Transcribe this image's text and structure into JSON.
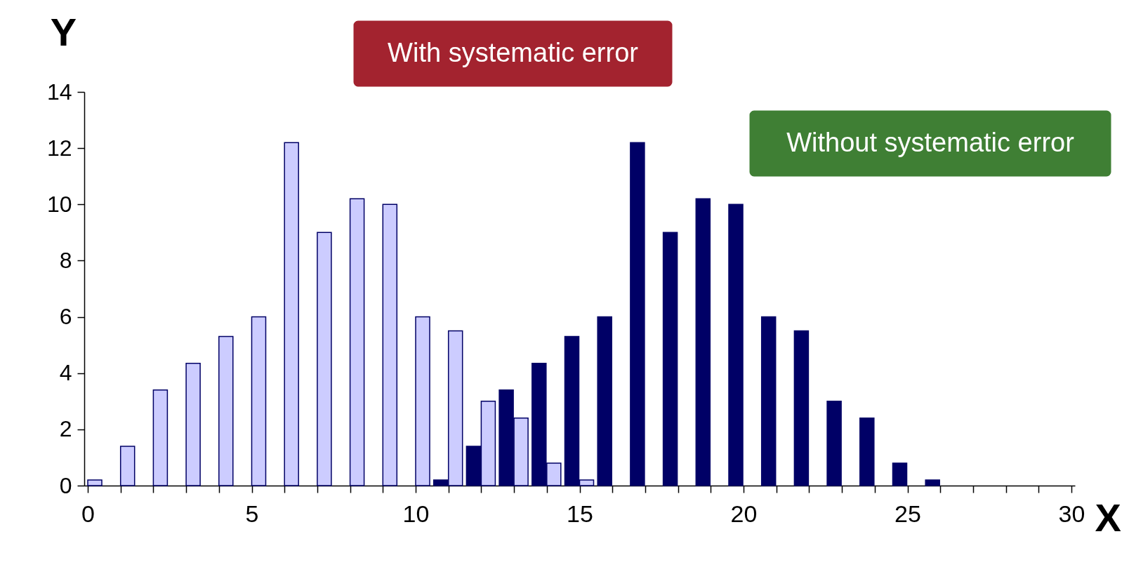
{
  "chart_data": {
    "type": "bar",
    "xlabel": "X",
    "ylabel": "Y",
    "x": [
      0,
      1,
      2,
      3,
      4,
      5,
      6,
      7,
      8,
      9,
      10,
      11,
      12,
      13,
      14,
      15,
      16,
      17,
      18,
      19,
      20,
      21,
      22,
      23,
      24,
      25,
      26
    ],
    "series": [
      {
        "color": "#000066",
        "values": [
          null,
          null,
          null,
          null,
          null,
          null,
          null,
          null,
          null,
          null,
          null,
          0.2,
          1.4,
          3.4,
          4.35,
          5.3,
          6.0,
          12.2,
          9.0,
          10.2,
          10.0,
          6.0,
          5.5,
          3.0,
          2.4,
          0.8,
          0.2
        ]
      },
      {
        "color": "#ccccff",
        "values": [
          0.2,
          1.4,
          3.4,
          4.35,
          5.3,
          6.0,
          12.2,
          9.0,
          10.2,
          10.0,
          6.0,
          5.5,
          3.0,
          2.4,
          0.8,
          0.2,
          null,
          null,
          null,
          null,
          null,
          null,
          null,
          null,
          null,
          null,
          null
        ]
      }
    ],
    "annotations": [
      "With systematic error",
      "Without systematic error"
    ],
    "xlim": [
      0,
      30
    ],
    "xticks": [
      0,
      {
        "value": 1,
        "label": null
      },
      {
        "value": 2,
        "label": null
      },
      {
        "value": 3,
        "label": null
      },
      {
        "value": 4,
        "label": null
      },
      5,
      {
        "value": 6,
        "label": null
      },
      {
        "value": 7,
        "label": null
      },
      {
        "value": 8,
        "label": null
      },
      {
        "value": 9,
        "label": null
      },
      10,
      {
        "value": 11,
        "label": null
      },
      {
        "value": 12,
        "label": null
      },
      {
        "value": 13,
        "label": null
      },
      {
        "value": 14,
        "label": null
      },
      15,
      {
        "value": 16,
        "label": null
      },
      {
        "value": 17,
        "label": null
      },
      {
        "value": 18,
        "label": null
      },
      {
        "value": 19,
        "label": null
      },
      20,
      {
        "value": 21,
        "label": null
      },
      {
        "value": 22,
        "label": null
      },
      {
        "value": 23,
        "label": null
      },
      {
        "value": 24,
        "label": null
      },
      25,
      {
        "value": 26,
        "label": null
      },
      {
        "value": 27,
        "label": null
      },
      {
        "value": 28,
        "label": null
      },
      {
        "value": 29,
        "label": null
      },
      30
    ],
    "ylim": [
      0,
      14
    ],
    "yticks": [
      0,
      2,
      4,
      6,
      8,
      10,
      12,
      14
    ]
  }
}
